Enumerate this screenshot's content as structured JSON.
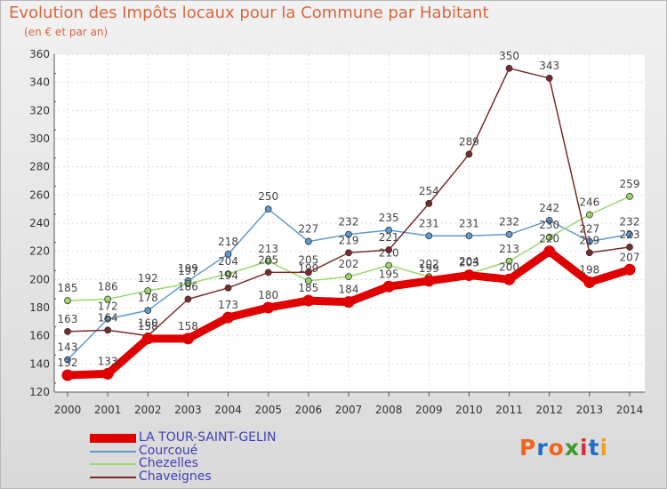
{
  "header": {
    "title": "Evolution des Impôts locaux pour la Commune par Habitant",
    "subtitle": "(en € et par an)"
  },
  "logo": {
    "text": "Proxiti",
    "colors": [
      "#f0641e",
      "#1f6fc6",
      "#f0641e",
      "#3a9a2a",
      "#d32f3a",
      "#1f6fc6",
      "#f0a020"
    ]
  },
  "chart_data": {
    "type": "line",
    "title": "Evolution des Impôts locaux pour la Commune par Habitant",
    "subtitle": "(en € et par an)",
    "x": [
      2000,
      2001,
      2002,
      2003,
      2004,
      2005,
      2006,
      2007,
      2008,
      2009,
      2010,
      2011,
      2012,
      2013,
      2014
    ],
    "ylim": [
      120,
      360
    ],
    "yticks": [
      120,
      140,
      160,
      180,
      200,
      220,
      240,
      260,
      280,
      300,
      320,
      340,
      360
    ],
    "grid": true,
    "legend_position": "bottom-left",
    "series": [
      {
        "name": "LA TOUR-SAINT-GELIN",
        "color": "#e00000",
        "style": "thick",
        "values": [
          132,
          133,
          158,
          158,
          173,
          180,
          185,
          184,
          195,
          199,
          203,
          200,
          220,
          198,
          207
        ]
      },
      {
        "name": "Courcoué",
        "color": "#5d9bcf",
        "style": "thin",
        "values": [
          143,
          172,
          178,
          199,
          218,
          250,
          227,
          232,
          235,
          231,
          231,
          232,
          242,
          227,
          232
        ]
      },
      {
        "name": "Chezelles",
        "color": "#9ad86a",
        "style": "thin",
        "values": [
          185,
          186,
          192,
          197,
          204,
          213,
          199,
          202,
          210,
          202,
          204,
          213,
          230,
          246,
          259
        ]
      },
      {
        "name": "Chaveignes",
        "color": "#7a2a2a",
        "style": "thin",
        "values": [
          163,
          164,
          160,
          186,
          194,
          205,
          205,
          219,
          221,
          254,
          289,
          350,
          343,
          219,
          223
        ]
      }
    ]
  }
}
